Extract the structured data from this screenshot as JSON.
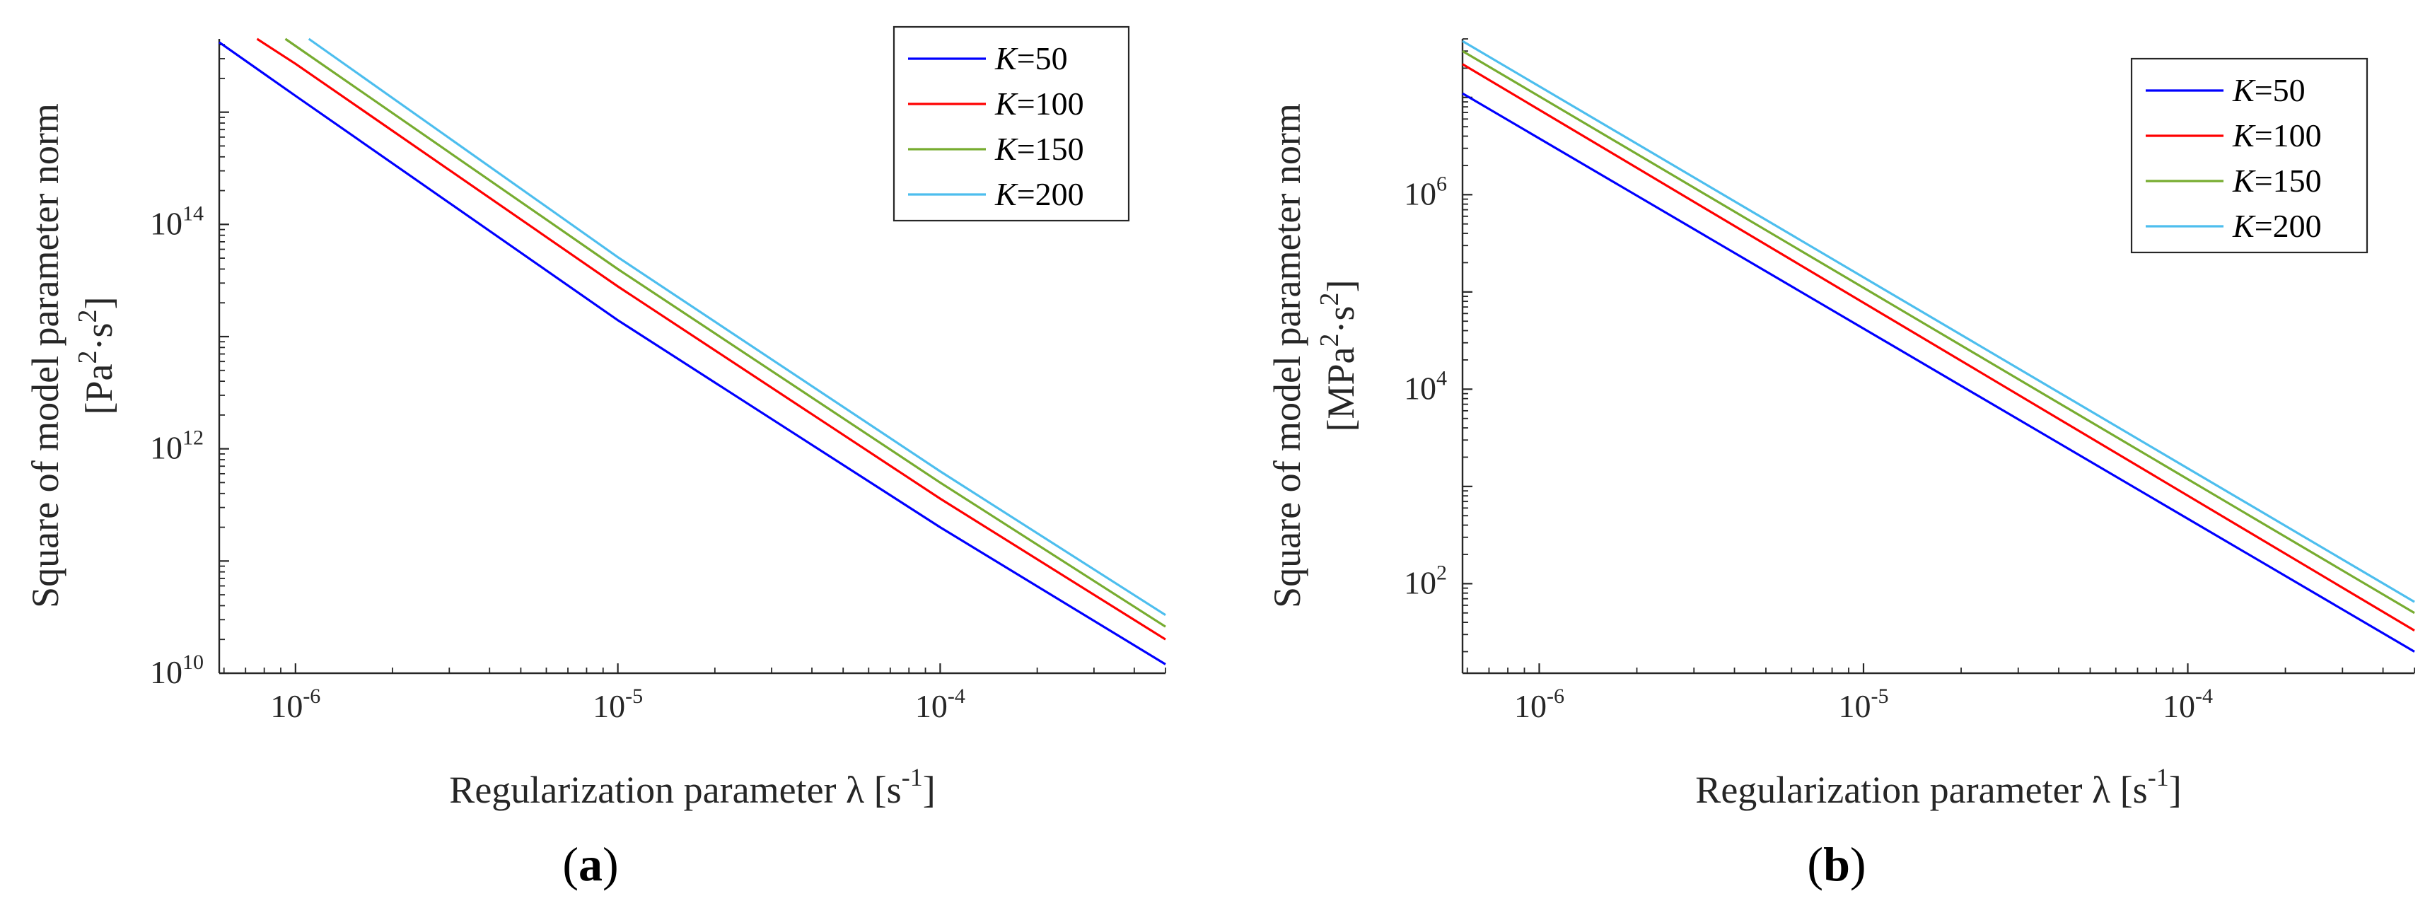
{
  "panels": {
    "a": {
      "label_open": "(",
      "label": "a",
      "label_close": ")"
    },
    "b": {
      "label_open": "(",
      "label": "b",
      "label_close": ")"
    }
  },
  "chart_data": [
    {
      "type": "line",
      "panel": "a",
      "xscale": "log",
      "yscale": "log",
      "xlim": [
        5.8e-07,
        0.0005
      ],
      "ylim": [
        10000000000.0,
        4500000000000000.0
      ],
      "xticks": [
        {
          "base": "10",
          "exp": "-6"
        },
        {
          "base": "10",
          "exp": "-5"
        },
        {
          "base": "10",
          "exp": "-4"
        }
      ],
      "xtick_values": [
        1e-06,
        1e-05,
        0.0001
      ],
      "yticks": [
        {
          "base": "10",
          "exp": "10"
        },
        {
          "base": "10",
          "exp": "12"
        },
        {
          "base": "10",
          "exp": "14"
        }
      ],
      "ytick_values": [
        10000000000.0,
        1000000000000.0,
        100000000000000.0
      ],
      "xlabel": "Regularization parameter λ  [s",
      "xlabel_exp": "-1",
      "xlabel_close": "]",
      "ylabel_line1": "Square of model parameter norm",
      "ylabel_line2_parts": [
        "[Pa",
        "2",
        "·s",
        "2",
        "]"
      ],
      "legend_loc": "top-right",
      "series": [
        {
          "name": "K",
          "value_label": "=50",
          "color": "#0000ff",
          "points": [
            [
              5.8e-07,
              4200000000000000.0
            ],
            [
              1e-06,
              1400000000000000.0
            ],
            [
              1e-05,
              14000000000000.0
            ],
            [
              0.0001,
              200000000000.0
            ],
            [
              0.0005,
              12000000000.0
            ]
          ]
        },
        {
          "name": "K",
          "value_label": "=100",
          "color": "#ff0000",
          "points": [
            [
              7.6e-07,
              4500000000000000.0
            ],
            [
              1e-06,
              2700000000000000.0
            ],
            [
              1e-05,
              28000000000000.0
            ],
            [
              0.0001,
              360000000000.0
            ],
            [
              0.0005,
              20000000000.0
            ]
          ]
        },
        {
          "name": "K",
          "value_label": "=150",
          "color": "#77ac30",
          "points": [
            [
              9.3e-07,
              4500000000000000.0
            ],
            [
              1e-05,
              40000000000000.0
            ],
            [
              0.0001,
              500000000000.0
            ],
            [
              0.0005,
              26000000000.0
            ]
          ]
        },
        {
          "name": "K",
          "value_label": "=200",
          "color": "#4dbeee",
          "points": [
            [
              1.1e-06,
              4500000000000000.0
            ],
            [
              1e-05,
              51000000000000.0
            ],
            [
              0.0001,
              630000000000.0
            ],
            [
              0.0005,
              33000000000.0
            ]
          ]
        }
      ]
    },
    {
      "type": "line",
      "panel": "b",
      "xscale": "log",
      "yscale": "log",
      "xlim": [
        5.8e-07,
        0.0005
      ],
      "ylim": [
        12,
        40000000.0
      ],
      "xticks": [
        {
          "base": "10",
          "exp": "-6"
        },
        {
          "base": "10",
          "exp": "-5"
        },
        {
          "base": "10",
          "exp": "-4"
        }
      ],
      "xtick_values": [
        1e-06,
        1e-05,
        0.0001
      ],
      "yticks": [
        {
          "base": "10",
          "exp": "2"
        },
        {
          "base": "10",
          "exp": "4"
        },
        {
          "base": "10",
          "exp": "6"
        }
      ],
      "ytick_values": [
        100,
        10000,
        1000000
      ],
      "xlabel": "Regularization parameter λ  [s",
      "xlabel_exp": "-1",
      "xlabel_close": "]",
      "ylabel_line1": "Square of model parameter norm",
      "ylabel_line2_parts": [
        "[MPa",
        "2",
        "·s",
        "2",
        "]"
      ],
      "legend_loc": "top-right",
      "series": [
        {
          "name": "K",
          "value_label": "=50",
          "color": "#0000ff",
          "points": [
            [
              5.8e-07,
              11000000.0
            ],
            [
              0.0005,
              20
            ]
          ]
        },
        {
          "name": "K",
          "value_label": "=100",
          "color": "#ff0000",
          "points": [
            [
              5.8e-07,
              22000000.0
            ],
            [
              0.0005,
              33
            ]
          ]
        },
        {
          "name": "K",
          "value_label": "=150",
          "color": "#77ac30",
          "points": [
            [
              5.8e-07,
              30000000.0
            ],
            [
              0.0005,
              50
            ]
          ]
        },
        {
          "name": "K",
          "value_label": "=200",
          "color": "#4dbeee",
          "points": [
            [
              5.8e-07,
              38000000.0
            ],
            [
              0.0005,
              65
            ]
          ]
        }
      ]
    }
  ]
}
